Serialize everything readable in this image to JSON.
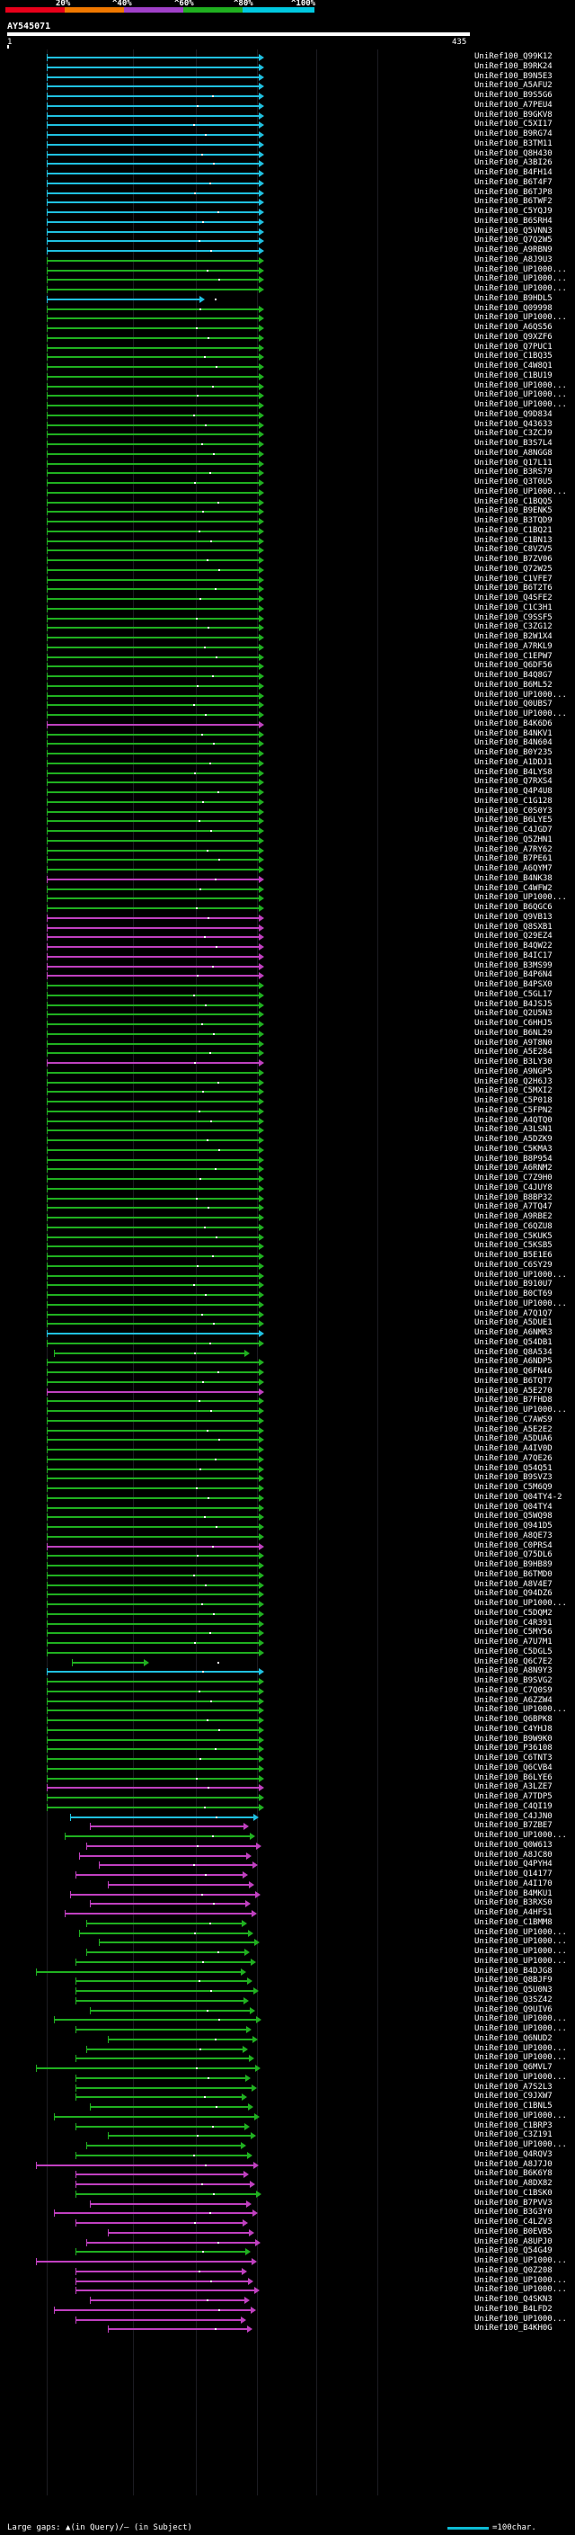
{
  "legend": {
    "labels": [
      "20%",
      "^40%",
      "^60%",
      "^80%",
      "^100%"
    ],
    "colors": [
      "#e8001a",
      "#f07800",
      "#a040c8",
      "#20b020",
      "#00c8e0"
    ]
  },
  "query": {
    "title": "AY545071",
    "start": "1",
    "end": "435"
  },
  "footer": {
    "gap_text": "Large gaps: ▲(in Query)/— (in Subject)",
    "scale_text": "=100char."
  },
  "hit_colors": {
    "c": "#20c0e0",
    "g": "#20b020",
    "m": "#c040c0"
  },
  "hits": [
    {
      "label": "UniRef100_Q99K12",
      "color": "c"
    },
    {
      "label": "UniRef100_B9RK24",
      "color": "c"
    },
    {
      "label": "UniRef100_B9N5E3",
      "color": "c"
    },
    {
      "label": "UniRef100_A5AFU2",
      "color": "c"
    },
    {
      "label": "UniRef100_B9S5G6",
      "color": "c"
    },
    {
      "label": "UniRef100_A7PEU4",
      "color": "c"
    },
    {
      "label": "UniRef100_B9GKV8",
      "color": "c"
    },
    {
      "label": "UniRef100_C5XI17",
      "color": "c"
    },
    {
      "label": "UniRef100_B9RG74",
      "color": "c"
    },
    {
      "label": "UniRef100_B3TM11",
      "color": "c"
    },
    {
      "label": "UniRef100_Q8H430",
      "color": "c"
    },
    {
      "label": "UniRef100_A3BI26",
      "color": "c"
    },
    {
      "label": "UniRef100_B4FH14",
      "color": "c"
    },
    {
      "label": "UniRef100_B6T4F7",
      "color": "c"
    },
    {
      "label": "UniRef100_B6TJP8",
      "color": "c"
    },
    {
      "label": "UniRef100_B6TWF2",
      "color": "c"
    },
    {
      "label": "UniRef100_C5YQJ9",
      "color": "c"
    },
    {
      "label": "UniRef100_B6SRH4",
      "color": "c"
    },
    {
      "label": "UniRef100_Q5VNN3",
      "color": "c"
    },
    {
      "label": "UniRef100_Q7Q2W5",
      "color": "c"
    },
    {
      "label": "UniRef100_A9RBN9",
      "color": "c"
    },
    {
      "label": "UniRef100_A8J9U3",
      "color": "g"
    },
    {
      "label": "UniRef100_UP1000...",
      "color": "g"
    },
    {
      "label": "UniRef100_UP1000...",
      "color": "g"
    },
    {
      "label": "UniRef100_UP1000...",
      "color": "g"
    },
    {
      "label": "UniRef100_B9HDL5",
      "color": "c"
    },
    {
      "label": "UniRef100_Q09998",
      "color": "g"
    },
    {
      "label": "UniRef100_UP1000...",
      "color": "g"
    },
    {
      "label": "UniRef100_A6QS56",
      "color": "g"
    },
    {
      "label": "UniRef100_Q9XZF6",
      "color": "g"
    },
    {
      "label": "UniRef100_Q7PUC1",
      "color": "g"
    },
    {
      "label": "UniRef100_C1BQ35",
      "color": "g"
    },
    {
      "label": "UniRef100_C4W8Q1",
      "color": "g"
    },
    {
      "label": "UniRef100_C1BU19",
      "color": "g"
    },
    {
      "label": "UniRef100_UP1000...",
      "color": "g"
    },
    {
      "label": "UniRef100_UP1000...",
      "color": "g"
    },
    {
      "label": "UniRef100_UP1000...",
      "color": "g"
    },
    {
      "label": "UniRef100_Q9D834",
      "color": "g"
    },
    {
      "label": "UniRef100_Q43633",
      "color": "g"
    },
    {
      "label": "UniRef100_C3ZCJ9",
      "color": "g"
    },
    {
      "label": "UniRef100_B3S7L4",
      "color": "g"
    },
    {
      "label": "UniRef100_A8NGG8",
      "color": "g"
    },
    {
      "label": "UniRef100_Q17L11",
      "color": "g"
    },
    {
      "label": "UniRef100_B3RS79",
      "color": "g"
    },
    {
      "label": "UniRef100_Q3T0U5",
      "color": "g"
    },
    {
      "label": "UniRef100_UP1000...",
      "color": "g"
    },
    {
      "label": "UniRef100_C1BQQ5",
      "color": "g"
    },
    {
      "label": "UniRef100_B9ENK5",
      "color": "g"
    },
    {
      "label": "UniRef100_B3TQD9",
      "color": "g"
    },
    {
      "label": "UniRef100_C1BQ21",
      "color": "g"
    },
    {
      "label": "UniRef100_C1BN13",
      "color": "g"
    },
    {
      "label": "UniRef100_C8VZV5",
      "color": "g"
    },
    {
      "label": "UniRef100_B7ZV06",
      "color": "g"
    },
    {
      "label": "UniRef100_Q72W25",
      "color": "g"
    },
    {
      "label": "UniRef100_C1VFE7",
      "color": "g"
    },
    {
      "label": "UniRef100_B6T2T6",
      "color": "g"
    },
    {
      "label": "UniRef100_Q4SFE2",
      "color": "g"
    },
    {
      "label": "UniRef100_C1C3H1",
      "color": "g"
    },
    {
      "label": "UniRef100_C9SSF5",
      "color": "g"
    },
    {
      "label": "UniRef100_C3ZG12",
      "color": "g"
    },
    {
      "label": "UniRef100_B2W1X4",
      "color": "g"
    },
    {
      "label": "UniRef100_A7RKL9",
      "color": "g"
    },
    {
      "label": "UniRef100_C1EPW7",
      "color": "g"
    },
    {
      "label": "UniRef100_Q6DF56",
      "color": "g"
    },
    {
      "label": "UniRef100_B4Q8G7",
      "color": "g"
    },
    {
      "label": "UniRef100_B6ML52",
      "color": "g"
    },
    {
      "label": "UniRef100_UP1000...",
      "color": "g"
    },
    {
      "label": "UniRef100_Q0UBS7",
      "color": "g"
    },
    {
      "label": "UniRef100_UP1000...",
      "color": "g"
    },
    {
      "label": "UniRef100_B4K6D6",
      "color": "m"
    },
    {
      "label": "UniRef100_B4NKV1",
      "color": "g"
    },
    {
      "label": "UniRef100_B4N604",
      "color": "g"
    },
    {
      "label": "UniRef100_B0Y235",
      "color": "g"
    },
    {
      "label": "UniRef100_A1DDJ1",
      "color": "g"
    },
    {
      "label": "UniRef100_B4LYS8",
      "color": "g"
    },
    {
      "label": "UniRef100_Q7RXS4",
      "color": "g"
    },
    {
      "label": "UniRef100_Q4P4U8",
      "color": "g"
    },
    {
      "label": "UniRef100_C1G128",
      "color": "g"
    },
    {
      "label": "UniRef100_C0S0Y3",
      "color": "g"
    },
    {
      "label": "UniRef100_B6LYE5",
      "color": "g"
    },
    {
      "label": "UniRef100_C4JGD7",
      "color": "g"
    },
    {
      "label": "UniRef100_Q5ZHN1",
      "color": "g"
    },
    {
      "label": "UniRef100_A7RY62",
      "color": "g"
    },
    {
      "label": "UniRef100_B7PE61",
      "color": "g"
    },
    {
      "label": "UniRef100_A6QYM7",
      "color": "g"
    },
    {
      "label": "UniRef100_B4NK38",
      "color": "m"
    },
    {
      "label": "UniRef100_C4WFW2",
      "color": "g"
    },
    {
      "label": "UniRef100_UP1000...",
      "color": "g"
    },
    {
      "label": "UniRef100_B6QGC6",
      "color": "g"
    },
    {
      "label": "UniRef100_Q9VB13",
      "color": "m"
    },
    {
      "label": "UniRef100_Q8SXB1",
      "color": "m"
    },
    {
      "label": "UniRef100_Q29EZ4",
      "color": "m"
    },
    {
      "label": "UniRef100_B4QW22",
      "color": "m"
    },
    {
      "label": "UniRef100_B4IC17",
      "color": "m"
    },
    {
      "label": "UniRef100_B3MS99",
      "color": "m"
    },
    {
      "label": "UniRef100_B4P6N4",
      "color": "m"
    },
    {
      "label": "UniRef100_B4PSX0",
      "color": "g"
    },
    {
      "label": "UniRef100_C5GL17",
      "color": "g"
    },
    {
      "label": "UniRef100_B4JSJ5",
      "color": "g"
    },
    {
      "label": "UniRef100_Q2U5N3",
      "color": "g"
    },
    {
      "label": "UniRef100_C6HHJ5",
      "color": "g"
    },
    {
      "label": "UniRef100_B6NL29",
      "color": "g"
    },
    {
      "label": "UniRef100_A9T8N0",
      "color": "g"
    },
    {
      "label": "UniRef100_A5E284",
      "color": "g"
    },
    {
      "label": "UniRef100_B3LY30",
      "color": "m"
    },
    {
      "label": "UniRef100_A9NGP5",
      "color": "g"
    },
    {
      "label": "UniRef100_Q2H6J3",
      "color": "g"
    },
    {
      "label": "UniRef100_C5MXI2",
      "color": "g"
    },
    {
      "label": "UniRef100_C5P018",
      "color": "g"
    },
    {
      "label": "UniRef100_C5FPN2",
      "color": "g"
    },
    {
      "label": "UniRef100_A4QTQ0",
      "color": "g"
    },
    {
      "label": "UniRef100_A3LSN1",
      "color": "g"
    },
    {
      "label": "UniRef100_A5DZK9",
      "color": "g"
    },
    {
      "label": "UniRef100_C5KMA3",
      "color": "g"
    },
    {
      "label": "UniRef100_B8P954",
      "color": "g"
    },
    {
      "label": "UniRef100_A6RNM2",
      "color": "g"
    },
    {
      "label": "UniRef100_C7Z9H0",
      "color": "g"
    },
    {
      "label": "UniRef100_C4JUY8",
      "color": "g"
    },
    {
      "label": "UniRef100_B8BP32",
      "color": "g"
    },
    {
      "label": "UniRef100_A7TQ47",
      "color": "g"
    },
    {
      "label": "UniRef100_A9RBE2",
      "color": "g"
    },
    {
      "label": "UniRef100_C6QZU8",
      "color": "g"
    },
    {
      "label": "UniRef100_C5KUK5",
      "color": "g"
    },
    {
      "label": "UniRef100_C5KSB5",
      "color": "g"
    },
    {
      "label": "UniRef100_B5E1E6",
      "color": "g"
    },
    {
      "label": "UniRef100_C6SY29",
      "color": "g"
    },
    {
      "label": "UniRef100_UP1000...",
      "color": "g"
    },
    {
      "label": "UniRef100_B910U7",
      "color": "g"
    },
    {
      "label": "UniRef100_B0CT69",
      "color": "g"
    },
    {
      "label": "UniRef100_UP1000...",
      "color": "g"
    },
    {
      "label": "UniRef100_A7Q1Q7",
      "color": "g"
    },
    {
      "label": "UniRef100_A5DUE1",
      "color": "g"
    },
    {
      "label": "UniRef100_A6NMR3",
      "color": "c"
    },
    {
      "label": "UniRef100_Q54DB1",
      "color": "g"
    },
    {
      "label": "UniRef100_Q8A534",
      "color": "g"
    },
    {
      "label": "UniRef100_A6NDP5",
      "color": "g"
    },
    {
      "label": "UniRef100_Q6FN46",
      "color": "g"
    },
    {
      "label": "UniRef100_B6TQT7",
      "color": "g"
    },
    {
      "label": "UniRef100_A5E270",
      "color": "m"
    },
    {
      "label": "UniRef100_B7FHD8",
      "color": "g"
    },
    {
      "label": "UniRef100_UP1000...",
      "color": "g"
    },
    {
      "label": "UniRef100_C7AWS9",
      "color": "g"
    },
    {
      "label": "UniRef100_A5E2E2",
      "color": "g"
    },
    {
      "label": "UniRef100_A5DUA6",
      "color": "g"
    },
    {
      "label": "UniRef100_A4IV0D",
      "color": "g"
    },
    {
      "label": "UniRef100_A7QE26",
      "color": "g"
    },
    {
      "label": "UniRef100_Q54Q51",
      "color": "g"
    },
    {
      "label": "UniRef100_B9SVZ3",
      "color": "g"
    },
    {
      "label": "UniRef100_C5M6Q9",
      "color": "g"
    },
    {
      "label": "UniRef100_Q04TY4-2",
      "color": "g"
    },
    {
      "label": "UniRef100_Q04TY4",
      "color": "g"
    },
    {
      "label": "UniRef100_Q5WQ98",
      "color": "g"
    },
    {
      "label": "UniRef100_Q941D5",
      "color": "g"
    },
    {
      "label": "UniRef100_A8QE73",
      "color": "g"
    },
    {
      "label": "UniRef100_C0PRS4",
      "color": "m"
    },
    {
      "label": "UniRef100_Q75DL6",
      "color": "g"
    },
    {
      "label": "UniRef100_B9HB89",
      "color": "g"
    },
    {
      "label": "UniRef100_B6TMD0",
      "color": "g"
    },
    {
      "label": "UniRef100_A8V4E7",
      "color": "g"
    },
    {
      "label": "UniRef100_Q94DZ6",
      "color": "g"
    },
    {
      "label": "UniRef100_UP1000...",
      "color": "g"
    },
    {
      "label": "UniRef100_C5DQM2",
      "color": "g"
    },
    {
      "label": "UniRef100_C4R391",
      "color": "g"
    },
    {
      "label": "UniRef100_C5MY56",
      "color": "g"
    },
    {
      "label": "UniRef100_A7U7M1",
      "color": "g"
    },
    {
      "label": "UniRef100_C5DGL5",
      "color": "g"
    },
    {
      "label": "UniRef100_Q6C7E2",
      "color": "g"
    },
    {
      "label": "UniRef100_A8N9Y3",
      "color": "c"
    },
    {
      "label": "UniRef100_B9SVG2",
      "color": "g"
    },
    {
      "label": "UniRef100_C7Q0S9",
      "color": "g"
    },
    {
      "label": "UniRef100_A6ZZW4",
      "color": "g"
    },
    {
      "label": "UniRef100_UP1000...",
      "color": "g"
    },
    {
      "label": "UniRef100_Q6BPK8",
      "color": "g"
    },
    {
      "label": "UniRef100_C4YHJ8",
      "color": "g"
    },
    {
      "label": "UniRef100_B9W9K0",
      "color": "g"
    },
    {
      "label": "UniRef100_P36108",
      "color": "g"
    },
    {
      "label": "UniRef100_C6TNT3",
      "color": "g"
    },
    {
      "label": "UniRef100_Q6CVB4",
      "color": "g"
    },
    {
      "label": "UniRef100_B6LYE6",
      "color": "g"
    },
    {
      "label": "UniRef100_A3LZE7",
      "color": "m"
    },
    {
      "label": "UniRef100_A7TDP5",
      "color": "g"
    },
    {
      "label": "UniRef100_C4QI19",
      "color": "g"
    },
    {
      "label": "UniRef100_C4JJN0",
      "color": "c"
    },
    {
      "label": "UniRef100_B7ZBE7",
      "color": "m"
    },
    {
      "label": "UniRef100_UP1000...",
      "color": "g"
    },
    {
      "label": "UniRef100_Q0W613",
      "color": "m"
    },
    {
      "label": "UniRef100_A8JC80",
      "color": "m"
    },
    {
      "label": "UniRef100_Q4PYH4",
      "color": "m"
    },
    {
      "label": "UniRef100_Q14177",
      "color": "m"
    },
    {
      "label": "UniRef100_A4I170",
      "color": "m"
    },
    {
      "label": "UniRef100_B4MKU1",
      "color": "m"
    },
    {
      "label": "UniRef100_B3RXS0",
      "color": "m"
    },
    {
      "label": "UniRef100_A4HFS1",
      "color": "m"
    },
    {
      "label": "UniRef100_C1BMM8",
      "color": "g"
    },
    {
      "label": "UniRef100_UP1000...",
      "color": "g"
    },
    {
      "label": "UniRef100_UP1000...",
      "color": "g"
    },
    {
      "label": "UniRef100_UP1000...",
      "color": "g"
    },
    {
      "label": "UniRef100_UP1000...",
      "color": "g"
    },
    {
      "label": "UniRef100_B4DJG8",
      "color": "g"
    },
    {
      "label": "UniRef100_Q8BJF9",
      "color": "g"
    },
    {
      "label": "UniRef100_Q5U0N3",
      "color": "g"
    },
    {
      "label": "UniRef100_Q3SZ42",
      "color": "g"
    },
    {
      "label": "UniRef100_Q9UIV6",
      "color": "g"
    },
    {
      "label": "UniRef100_UP1000...",
      "color": "g"
    },
    {
      "label": "UniRef100_UP1000...",
      "color": "g"
    },
    {
      "label": "UniRef100_Q6NUD2",
      "color": "g"
    },
    {
      "label": "UniRef100_UP1000...",
      "color": "g"
    },
    {
      "label": "UniRef100_UP1000...",
      "color": "g"
    },
    {
      "label": "UniRef100_Q6MVL7",
      "color": "g"
    },
    {
      "label": "UniRef100_UP1000...",
      "color": "g"
    },
    {
      "label": "UniRef100_A7S2L3",
      "color": "g"
    },
    {
      "label": "UniRef100_C9JXW7",
      "color": "g"
    },
    {
      "label": "UniRef100_C1BNL5",
      "color": "g"
    },
    {
      "label": "UniRef100_UP1000...",
      "color": "g"
    },
    {
      "label": "UniRef100_C1BRP3",
      "color": "g"
    },
    {
      "label": "UniRef100_C3Z191",
      "color": "g"
    },
    {
      "label": "UniRef100_UP1000...",
      "color": "g"
    },
    {
      "label": "UniRef100_Q4RQV3",
      "color": "g"
    },
    {
      "label": "UniRef100_A8J7J0",
      "color": "m"
    },
    {
      "label": "UniRef100_B6K6Y8",
      "color": "m"
    },
    {
      "label": "UniRef100_A8DX82",
      "color": "m"
    },
    {
      "label": "UniRef100_C1BSK0",
      "color": "g"
    },
    {
      "label": "UniRef100_B7PVV3",
      "color": "m"
    },
    {
      "label": "UniRef100_B3G3Y0",
      "color": "m"
    },
    {
      "label": "UniRef100_C4LZV3",
      "color": "m"
    },
    {
      "label": "UniRef100_B0EVB5",
      "color": "m"
    },
    {
      "label": "UniRef100_A8UPJ0",
      "color": "m"
    },
    {
      "label": "UniRef100_Q54G49",
      "color": "g"
    },
    {
      "label": "UniRef100_UP1000...",
      "color": "m"
    },
    {
      "label": "UniRef100_Q0Z208",
      "color": "m"
    },
    {
      "label": "UniRef100_UP1000...",
      "color": "m"
    },
    {
      "label": "UniRef100_UP1000...",
      "color": "m"
    },
    {
      "label": "UniRef100_Q4SKN3",
      "color": "m"
    },
    {
      "label": "UniRef100_B4LFD2",
      "color": "m"
    },
    {
      "label": "UniRef100_UP1000...",
      "color": "m"
    },
    {
      "label": "UniRef100_B4KH0G",
      "color": "m"
    }
  ]
}
